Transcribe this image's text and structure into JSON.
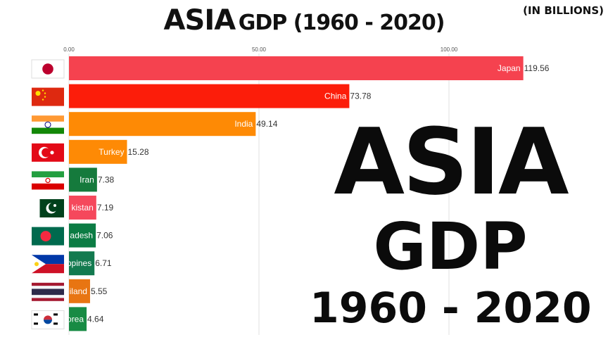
{
  "header": {
    "title_main": "ASIA",
    "title_sub": "GDP (1960 - 2020)",
    "unit_note": "(IN BILLIONS)"
  },
  "overlay": {
    "line1": "ASIA",
    "line2": "GDP",
    "line3": "1960 - 2020"
  },
  "chart_data": {
    "type": "bar",
    "orientation": "horizontal",
    "xlim": [
      0,
      120
    ],
    "ticks": [
      "0.00",
      "50.00",
      "100.00"
    ],
    "tick_values": [
      0,
      50,
      100
    ],
    "grid": true,
    "categories": [
      "Japan",
      "China",
      "India",
      "Turkey",
      "Iran",
      "kistan",
      "adesh",
      "ppines",
      "iland",
      "orea"
    ],
    "values": [
      119.56,
      73.78,
      49.14,
      15.28,
      7.38,
      7.19,
      7.06,
      6.71,
      5.55,
      4.64
    ],
    "value_labels": [
      "119.56",
      "73.78",
      "49.14",
      "15.28",
      "7.38",
      "7.19",
      "7.06",
      "6.71",
      "5.55",
      "4.64"
    ],
    "colors": [
      "#f5424f",
      "#fc1d0a",
      "#fe8a05",
      "#fe8a05",
      "#157a3c",
      "#f5485c",
      "#0c7c44",
      "#137a4f",
      "#e87512",
      "#188b44"
    ],
    "flags": [
      "japan-flag",
      "china-flag",
      "india-flag",
      "turkey-flag",
      "iran-flag",
      "pakistan-flag",
      "bangladesh-flag",
      "philippines-flag",
      "thailand-flag",
      "south-korea-flag"
    ]
  }
}
